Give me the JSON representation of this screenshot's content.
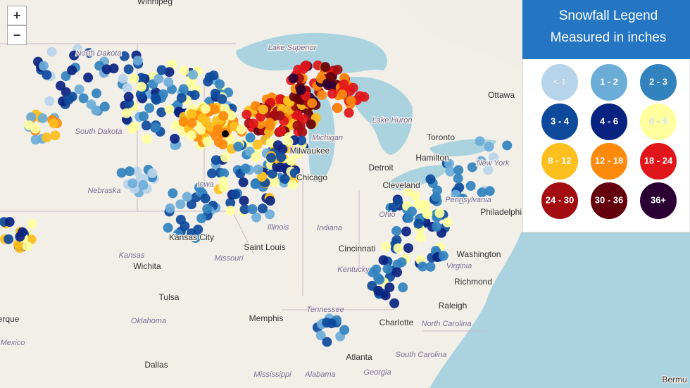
{
  "zoom": {
    "in": "+",
    "out": "−"
  },
  "legend": {
    "title": [
      "Snowfall Legend",
      "Measured in inches"
    ],
    "items": [
      {
        "label": "< 1",
        "color": "#b8d4ea"
      },
      {
        "label": "1 - 2",
        "color": "#6cadd8"
      },
      {
        "label": "2 - 3",
        "color": "#3182bd"
      },
      {
        "label": "3 - 4",
        "color": "#0e4a9c"
      },
      {
        "label": "4 - 6",
        "color": "#0a2380"
      },
      {
        "label": "6 - 8",
        "color": "#ffff9e"
      },
      {
        "label": "8 - 12",
        "color": "#fdbf1d"
      },
      {
        "label": "12 - 18",
        "color": "#fc8a0d"
      },
      {
        "label": "18 - 24",
        "color": "#e0161a"
      },
      {
        "label": "24 - 30",
        "color": "#a30d12"
      },
      {
        "label": "30 - 36",
        "color": "#64000c"
      },
      {
        "label": "36+",
        "color": "#2b0033"
      }
    ]
  },
  "places": [
    "Winnipeg",
    "North Dakota",
    "South Dakota",
    "Nebraska",
    "Iowa",
    "Kansas City",
    "Kansas",
    "Wichita",
    "Tulsa",
    "Oklahoma",
    "Mexico",
    "Dallas",
    "Memphis",
    "Mississippi",
    "Alabama",
    "Atlanta",
    "Georgia",
    "Tennessee",
    "Kentucky",
    "Cincinnati",
    "Indiana",
    "Illinois",
    "Missouri",
    "Saint Louis",
    "Ohio",
    "Detroit",
    "Cleveland",
    "Chicago",
    "Milwaukee",
    "Michigan",
    "Lake Superior",
    "Lake Huron",
    "Ottawa",
    "Toronto",
    "Hamilton",
    "New York",
    "Pennsylvania",
    "Philadelphia",
    "Washington",
    "Virginia",
    "Richmond",
    "Raleigh",
    "North Carolina",
    "Charlotte",
    "South Carolina",
    "Bermu",
    "erque"
  ]
}
